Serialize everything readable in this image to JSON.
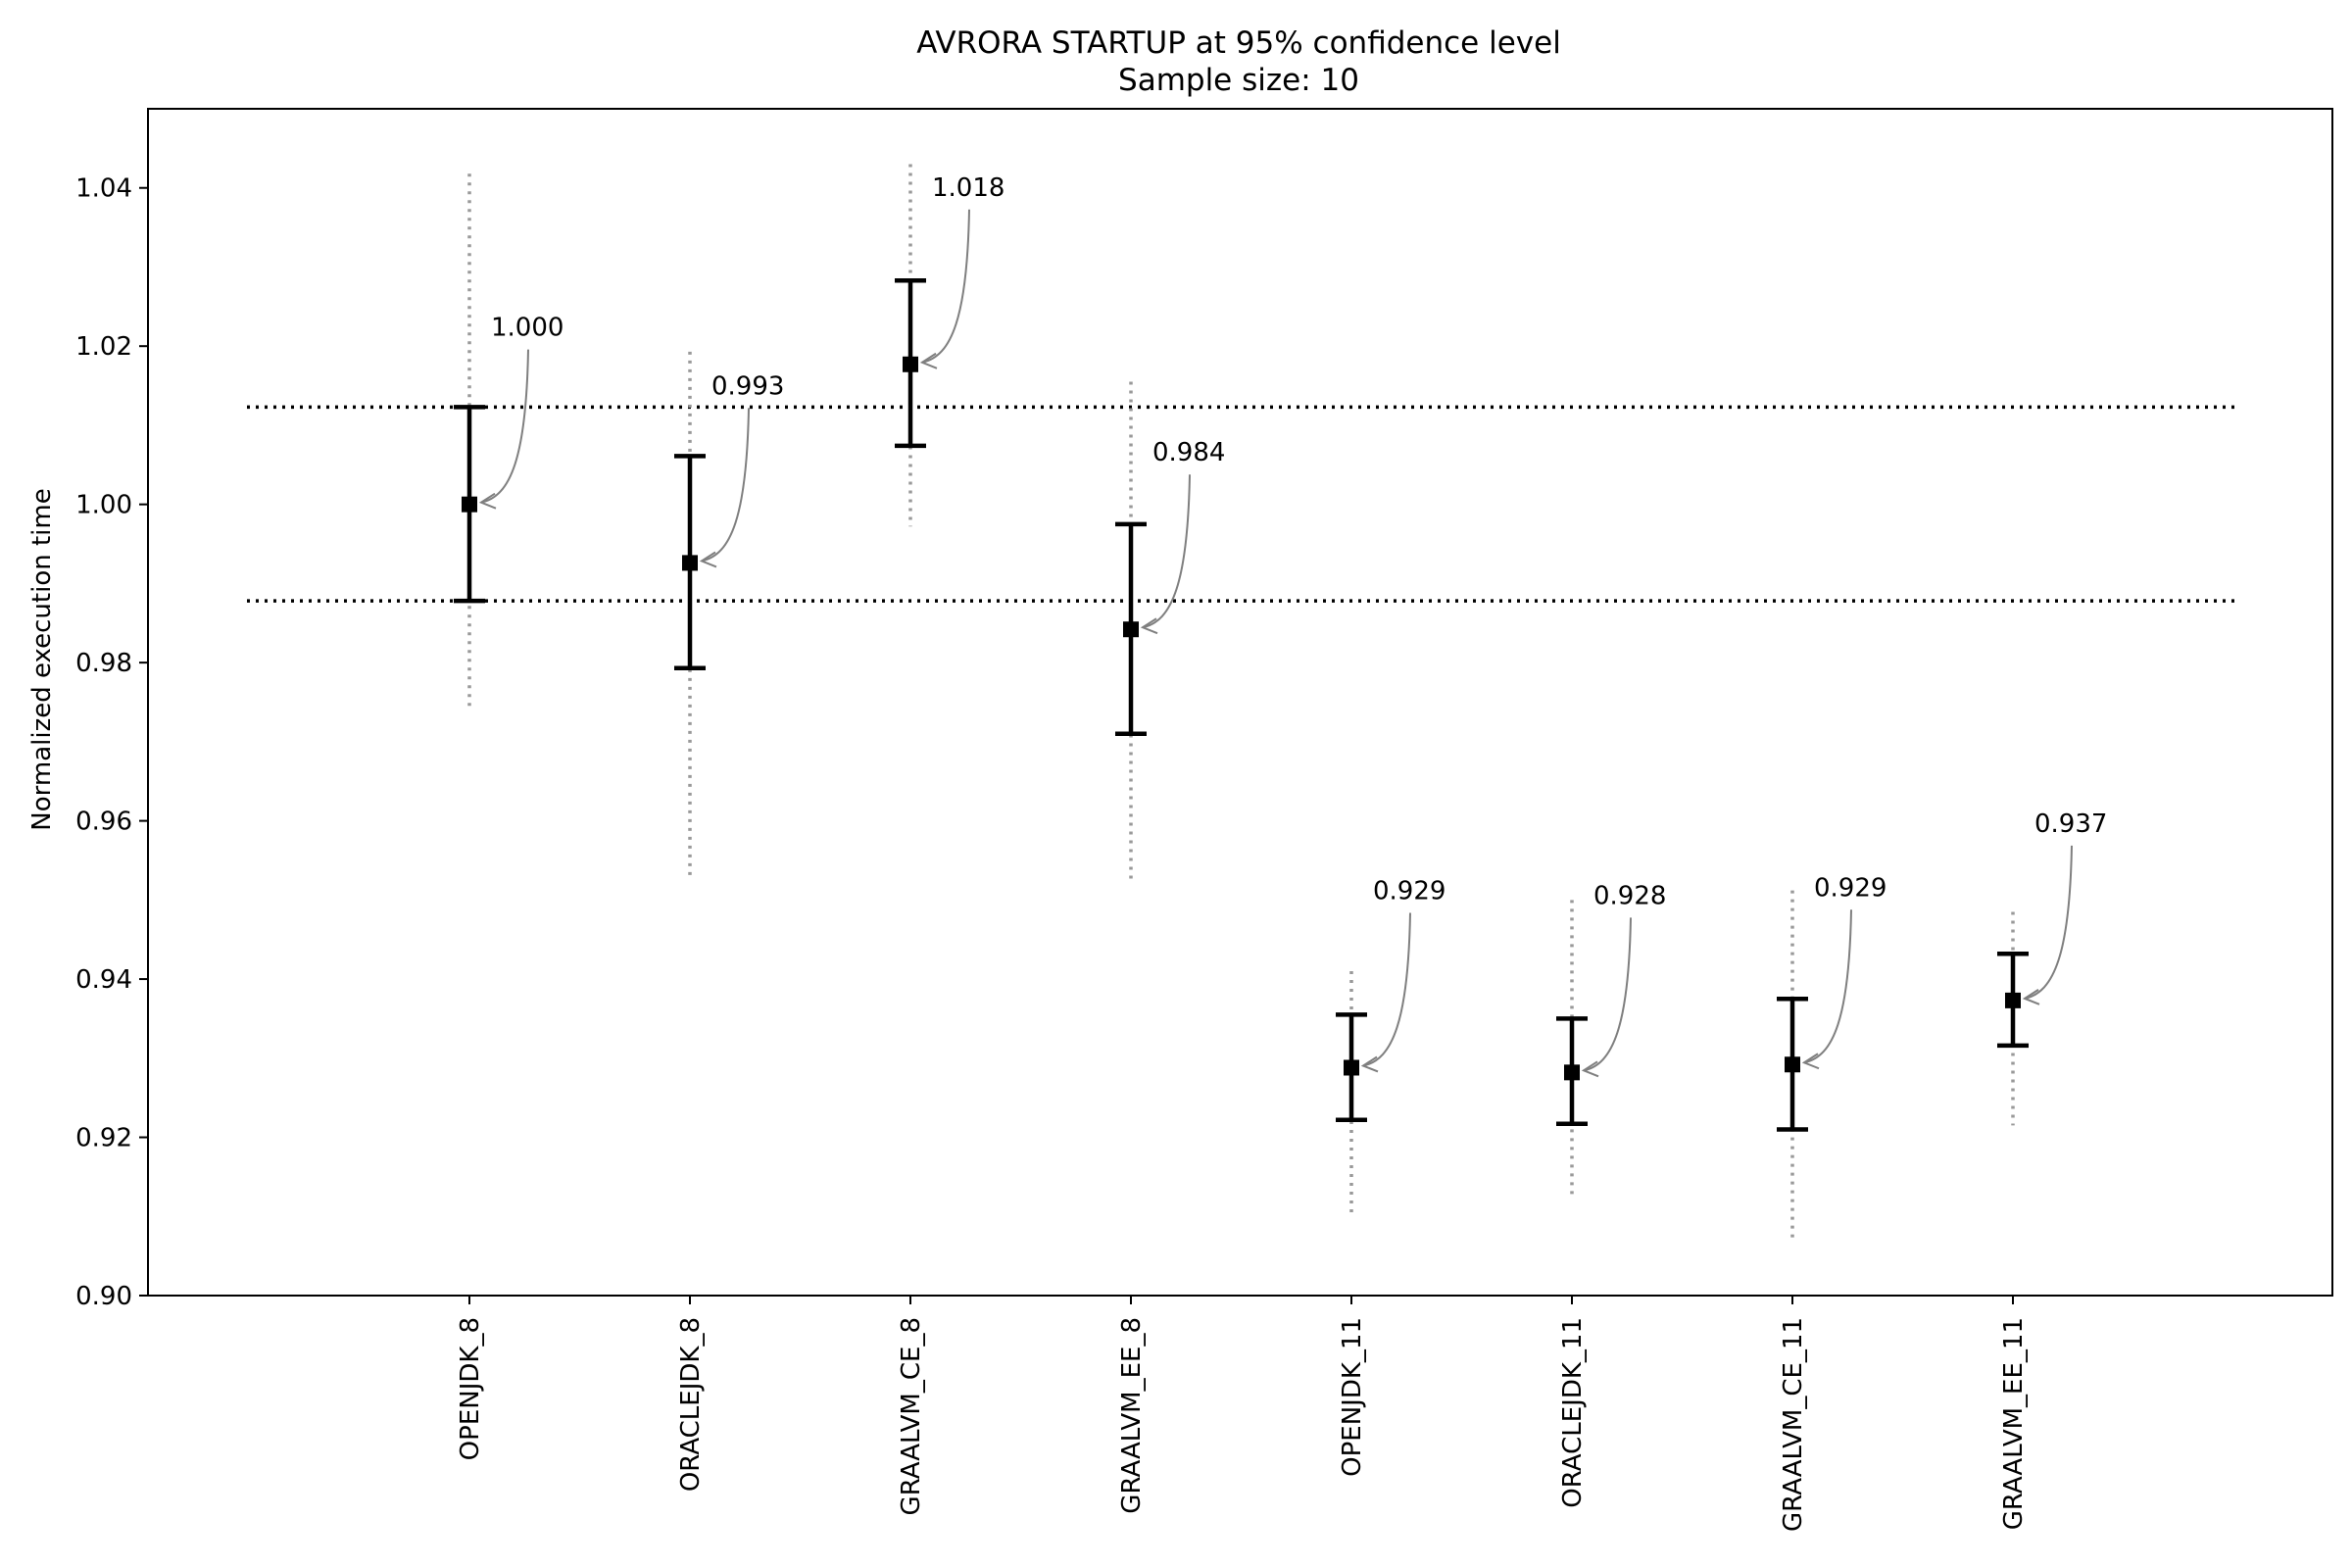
{
  "chart_data": {
    "type": "errorbar",
    "title": "AVRORA STARTUP at 95% confidence level",
    "subtitle": "Sample size: 10",
    "xlabel": "",
    "ylabel": "Normalized execution time",
    "ylim": [
      0.9,
      1.05
    ],
    "yticks": [
      "0.90",
      "0.92",
      "0.94",
      "0.96",
      "0.98",
      "1.00",
      "1.02",
      "1.04"
    ],
    "grid": false,
    "reference_lines": [
      1.0123,
      0.9878
    ],
    "categories": [
      "OPENJDK_8",
      "ORACLEJDK_8",
      "GRAALVM_CE_8",
      "GRAALVM_EE_8",
      "OPENJDK_11",
      "ORACLEJDK_11",
      "GRAALVM_CE_11",
      "GRAALVM_EE_11"
    ],
    "means": [
      1.0,
      0.9926,
      1.0177,
      0.9842,
      0.9288,
      0.9282,
      0.9292,
      0.9373
    ],
    "value_labels": [
      "1.000",
      "0.993",
      "1.018",
      "0.984",
      "0.929",
      "0.928",
      "0.929",
      "0.937"
    ],
    "ci_low": [
      0.9878,
      0.9793,
      1.0074,
      0.971,
      0.9222,
      0.9217,
      0.921,
      0.9316
    ],
    "ci_high": [
      1.0123,
      1.0061,
      1.0283,
      0.9975,
      0.9355,
      0.935,
      0.9375,
      0.9432
    ],
    "range_low": [
      0.974,
      0.953,
      0.9972,
      0.952,
      0.91,
      0.9122,
      0.9067,
      0.9215
    ],
    "range_high": [
      1.0418,
      1.0193,
      1.043,
      1.0155,
      0.941,
      0.95,
      0.9512,
      0.9485
    ]
  }
}
